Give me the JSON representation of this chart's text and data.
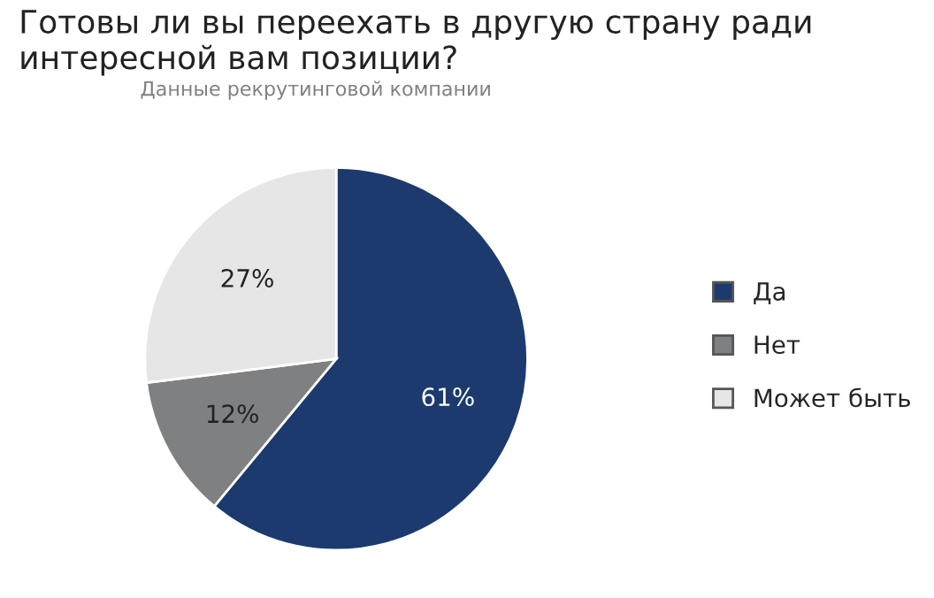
{
  "chart_data": {
    "type": "pie",
    "title": "Готовы ли вы переехать в другую страну ради\nинтересной вам позиции?",
    "subtitle": "Данные рекрутинговой компании",
    "categories": [
      "Да",
      "Нет",
      "Может быть"
    ],
    "values": [
      61,
      12,
      27
    ],
    "value_labels": [
      "61%",
      "12%",
      "27%"
    ],
    "colors": [
      "#1c3a6e",
      "#7f8082",
      "#e6e6e6"
    ],
    "legend": "right"
  }
}
